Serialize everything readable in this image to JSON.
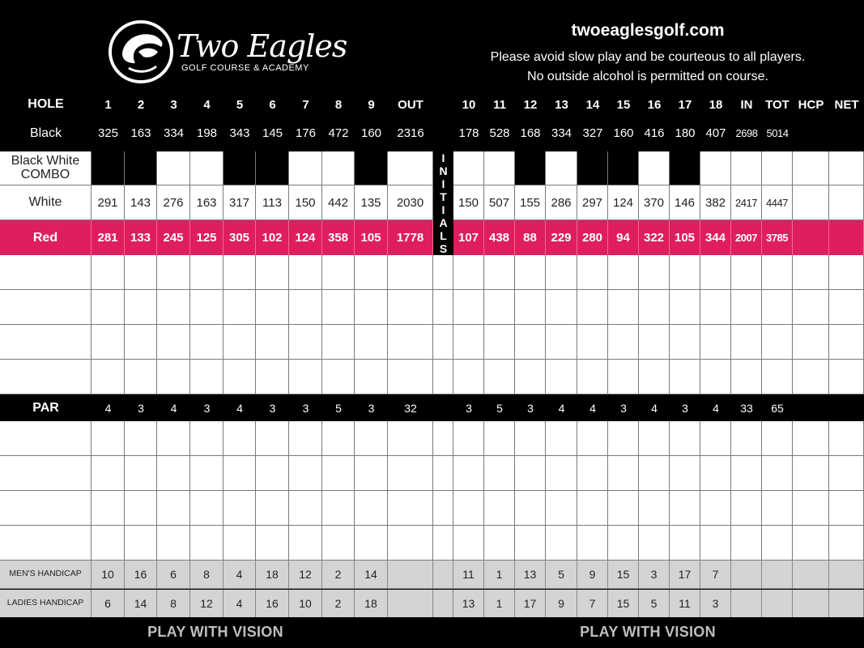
{
  "header": {
    "brand_name": "Two Eagles",
    "brand_subtitle": "GOLF COURSE & ACADEMY",
    "website": "twoeaglesgolf.com",
    "notice_line1": "Please avoid slow play and be courteous to all players.",
    "notice_line2": "No outside alcohol is permitted on course."
  },
  "columns": {
    "hole_label": "HOLE",
    "front": [
      "1",
      "2",
      "3",
      "4",
      "5",
      "6",
      "7",
      "8",
      "9"
    ],
    "out": "OUT",
    "back": [
      "10",
      "11",
      "12",
      "13",
      "14",
      "15",
      "16",
      "17",
      "18"
    ],
    "in": "IN",
    "tot": "TOT",
    "hcp": "HCP",
    "net": "NET"
  },
  "initials_label": "INITIALS",
  "tees": [
    {
      "label": "Black",
      "front": [
        "325",
        "163",
        "334",
        "198",
        "343",
        "145",
        "176",
        "472",
        "160"
      ],
      "out": "2316",
      "back": [
        "178",
        "528",
        "168",
        "334",
        "327",
        "160",
        "416",
        "180",
        "407"
      ],
      "in": "2698",
      "tot": "5014"
    },
    {
      "label": "Black White COMBO",
      "front": [
        "",
        "",
        "",
        "",
        "",
        "",
        "",
        "",
        ""
      ],
      "out": "",
      "back": [
        "",
        "",
        "",
        "",
        "",
        "",
        "",
        "",
        ""
      ],
      "in": "",
      "tot": ""
    },
    {
      "label": "White",
      "front": [
        "291",
        "143",
        "276",
        "163",
        "317",
        "113",
        "150",
        "442",
        "135"
      ],
      "out": "2030",
      "back": [
        "150",
        "507",
        "155",
        "286",
        "297",
        "124",
        "370",
        "146",
        "382"
      ],
      "in": "2417",
      "tot": "4447"
    },
    {
      "label": "Red",
      "front": [
        "281",
        "133",
        "245",
        "125",
        "305",
        "102",
        "124",
        "358",
        "105"
      ],
      "out": "1778",
      "back": [
        "107",
        "438",
        "88",
        "229",
        "280",
        "94",
        "322",
        "105",
        "344"
      ],
      "in": "2007",
      "tot": "3785"
    }
  ],
  "combo_shading": {
    "front": [
      true,
      true,
      false,
      false,
      true,
      true,
      false,
      false,
      true
    ],
    "back": [
      false,
      false,
      true,
      false,
      true,
      true,
      false,
      true,
      false
    ]
  },
  "par": {
    "label": "PAR",
    "front": [
      "4",
      "3",
      "4",
      "3",
      "4",
      "3",
      "3",
      "5",
      "3"
    ],
    "out": "32",
    "back": [
      "3",
      "5",
      "3",
      "4",
      "4",
      "3",
      "4",
      "3",
      "4"
    ],
    "in": "33",
    "tot": "65"
  },
  "mens_handicap": {
    "label": "MEN'S HANDICAP",
    "front": [
      "10",
      "16",
      "6",
      "8",
      "4",
      "18",
      "12",
      "2",
      "14"
    ],
    "back": [
      "11",
      "1",
      "13",
      "5",
      "9",
      "15",
      "3",
      "17",
      "7"
    ]
  },
  "ladies_handicap": {
    "label": "LADIES HANDICAP",
    "front": [
      "6",
      "14",
      "8",
      "12",
      "4",
      "16",
      "10",
      "2",
      "18"
    ],
    "back": [
      "13",
      "1",
      "17",
      "9",
      "7",
      "15",
      "5",
      "11",
      "3"
    ]
  },
  "footer": {
    "slogan_left": "PLAY WITH VISION",
    "slogan_right": "PLAY WITH VISION"
  },
  "colors": {
    "accent": "#df1e5e",
    "header_bg": "#000000",
    "handicap_bg": "#d4d4d4"
  },
  "icons": {
    "logo": "eagle-emblem-icon"
  }
}
